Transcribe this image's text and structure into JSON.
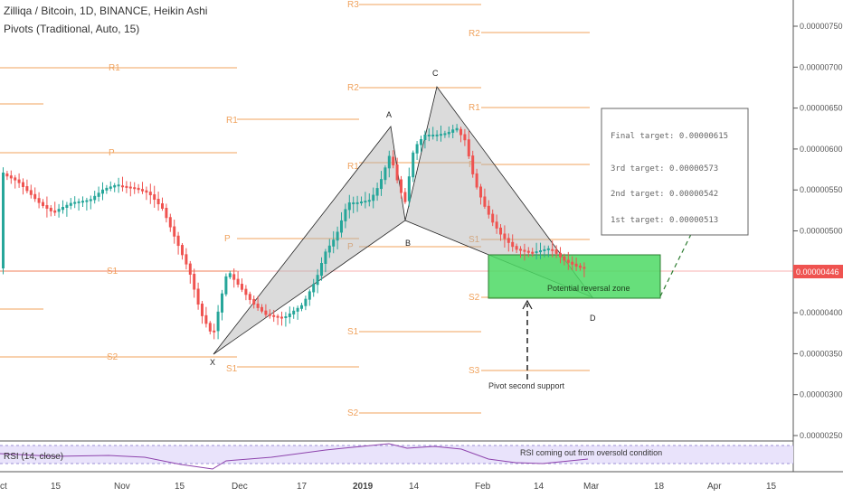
{
  "header": {
    "title": "Zilliqa / Bitcoin, 1D, BINANCE, Heikin Ashi",
    "indicator": "Pivots (Traditional, Auto, 15)"
  },
  "colors": {
    "up": "#26a69a",
    "down": "#ef5350",
    "pivot": "#f0a35e",
    "zone_fill": "#4cd964",
    "zone_border": "#2e7d32",
    "price_badge": "#ef5350",
    "rsi_band": "#e9e3fb",
    "rsi_line": "#8e44ad",
    "pattern_fill": "#b0b0b0"
  },
  "chart_data": {
    "type": "candlestick",
    "style": "Heikin Ashi",
    "symbol": "Zilliqa / Bitcoin",
    "interval": "1D",
    "exchange": "BINANCE",
    "y_ticks": [
      "0.00000750",
      "0.00000700",
      "0.00000650",
      "0.00000600",
      "0.00000550",
      "0.00000500",
      "0.00000450",
      "0.00000400",
      "0.00000350",
      "0.00000300",
      "0.00000250"
    ],
    "x_ticks": [
      "ct",
      "15",
      "Nov",
      "15",
      "Dec",
      "17",
      "2019",
      "14",
      "Feb",
      "14",
      "Mar",
      "18",
      "Apr",
      "15"
    ],
    "last_price": "0.00000446",
    "pivot_labels": [
      {
        "label": "R1"
      },
      {
        "label": "P"
      },
      {
        "label": "S1"
      },
      {
        "label": "S2"
      },
      {
        "label": "R1"
      },
      {
        "label": "P"
      },
      {
        "label": "S1"
      },
      {
        "label": "R3"
      },
      {
        "label": "R2"
      },
      {
        "label": "R1"
      },
      {
        "label": "P"
      },
      {
        "label": "S1"
      },
      {
        "label": "S2"
      },
      {
        "label": "R2"
      },
      {
        "label": "R1"
      },
      {
        "label": "P"
      },
      {
        "label": "S1"
      },
      {
        "label": "S2"
      },
      {
        "label": "S3"
      }
    ],
    "pattern_points": [
      {
        "label": "X",
        "date": "2018-11-26",
        "price": 3.5e-06
      },
      {
        "label": "A",
        "date": "2019-01-10",
        "price": 6.28e-06
      },
      {
        "label": "B",
        "date": "2019-01-14",
        "price": 5.12e-06
      },
      {
        "label": "C",
        "date": "2019-01-20",
        "price": 6.75e-06
      },
      {
        "label": "D",
        "date": "2019-02-28",
        "price": 4.15e-06
      }
    ],
    "targets_box": {
      "final": "Final target: 0.00000615",
      "third": "3rd target: 0.00000573",
      "second": "2nd target: 0.00000542",
      "first": "1st target: 0.00000513"
    },
    "annotations": {
      "zone": "Potential reversal zone",
      "pivot_support": "Pivot second support"
    },
    "rsi": {
      "label": "RSI (14, close)",
      "note": "RSI coming out from oversold condition"
    }
  }
}
